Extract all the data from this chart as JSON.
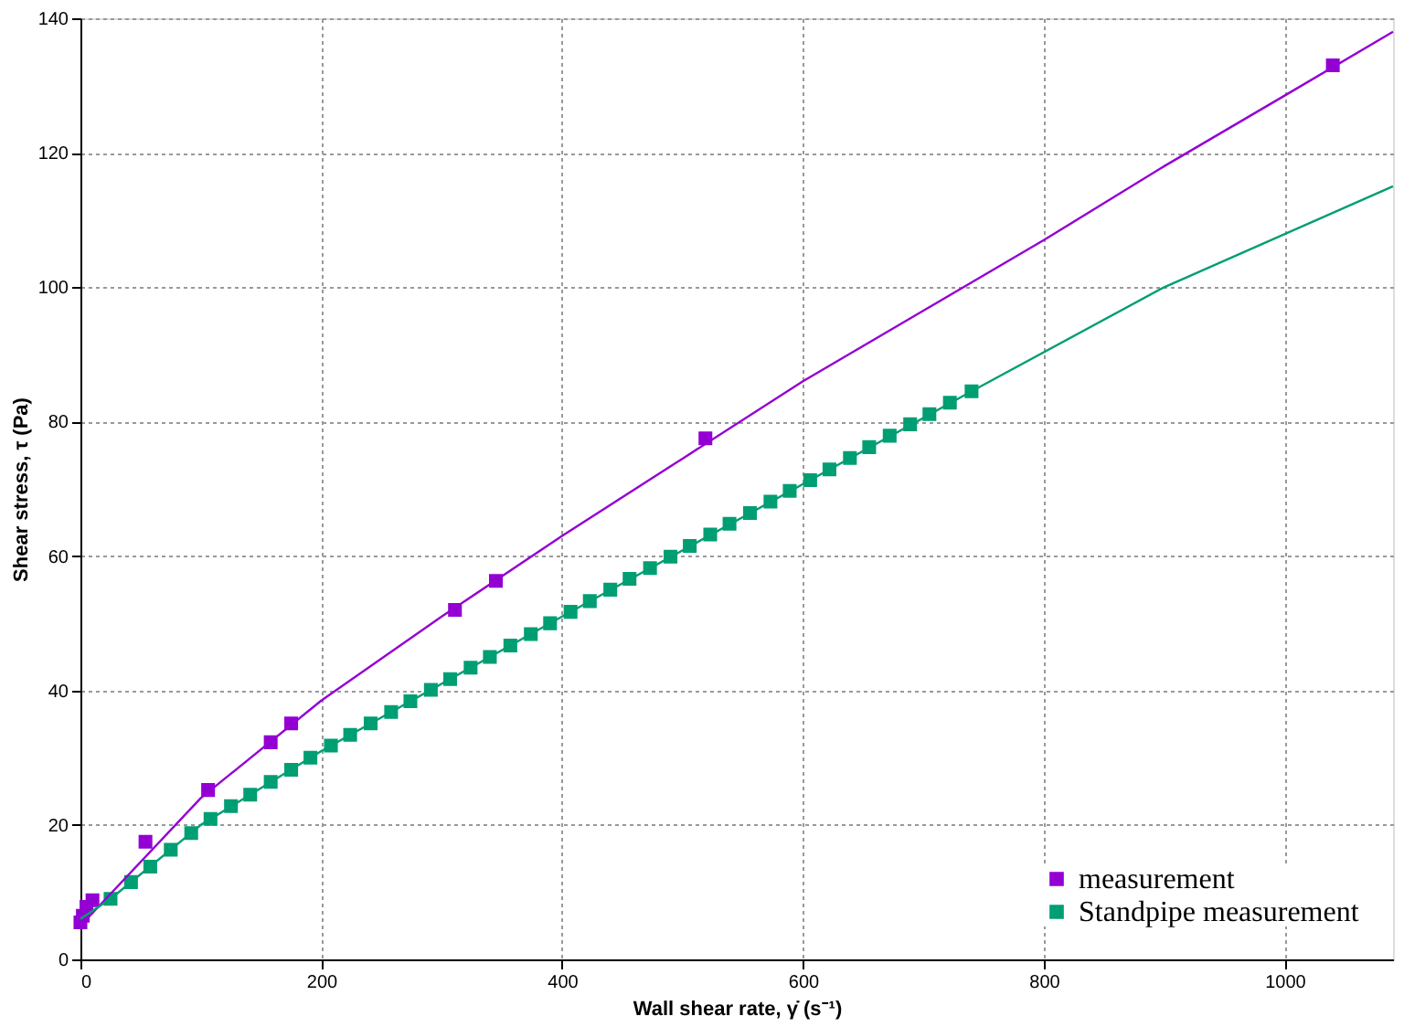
{
  "chart_data": {
    "type": "scatter",
    "xlabel": "Wall shear rate, γ̇ (s⁻¹)",
    "ylabel": "Shear stress, τ (Pa)",
    "xlim": [
      0,
      1090
    ],
    "ylim": [
      0,
      140
    ],
    "xticks": [
      0,
      200,
      400,
      600,
      800,
      1000
    ],
    "yticks": [
      0,
      20,
      40,
      60,
      80,
      100,
      120,
      140
    ],
    "grid": true,
    "legend": "bottom right",
    "series": [
      {
        "name": "measurement",
        "color": "#9400d3",
        "marker": "square",
        "x": [
          0,
          2,
          5,
          10,
          54,
          106,
          158,
          175,
          311,
          345,
          519,
          1040
        ],
        "values": [
          5.5,
          6.5,
          7.8,
          8.8,
          17.5,
          25.2,
          32.3,
          35.1,
          52,
          56.3,
          77.5,
          133
        ]
      },
      {
        "name": "Standpipe measurement",
        "color": "#009e73",
        "marker": "square",
        "x": [
          25,
          42,
          58,
          75,
          92,
          108,
          125,
          141,
          158,
          175,
          191,
          208,
          224,
          241,
          258,
          274,
          291,
          307,
          324,
          340,
          357,
          374,
          390,
          407,
          423,
          440,
          456,
          473,
          490,
          506,
          523,
          539,
          556,
          573,
          589,
          606,
          622,
          639,
          655,
          672,
          689,
          705,
          722,
          740
        ],
        "values": [
          9,
          11.5,
          13.8,
          16.3,
          18.8,
          20.9,
          22.8,
          24.5,
          26.4,
          28.2,
          30,
          31.8,
          33.4,
          35.1,
          36.8,
          38.4,
          40.1,
          41.7,
          43.4,
          45,
          46.7,
          48.4,
          50,
          51.7,
          53.3,
          55,
          56.6,
          58.2,
          59.9,
          61.5,
          63.2,
          64.8,
          66.4,
          68.1,
          69.7,
          71.3,
          72.9,
          74.6,
          76.2,
          77.9,
          79.6,
          81.1,
          82.8,
          84.5
        ]
      },
      {
        "color": "#9400d3",
        "type": "line",
        "x": [
          0,
          100,
          200,
          300,
          400,
          500,
          600,
          700,
          800,
          900,
          1000,
          1090
        ],
        "values": [
          5,
          24,
          38.5,
          51,
          63,
          74.5,
          86,
          96.5,
          107,
          118,
          128.5,
          138
        ]
      },
      {
        "color": "#009e73",
        "type": "line",
        "x": [
          0,
          25,
          100,
          200,
          400,
          740,
          900,
          1090
        ],
        "values": [
          6,
          9,
          20,
          31,
          51,
          84.5,
          100,
          115
        ]
      }
    ]
  }
}
